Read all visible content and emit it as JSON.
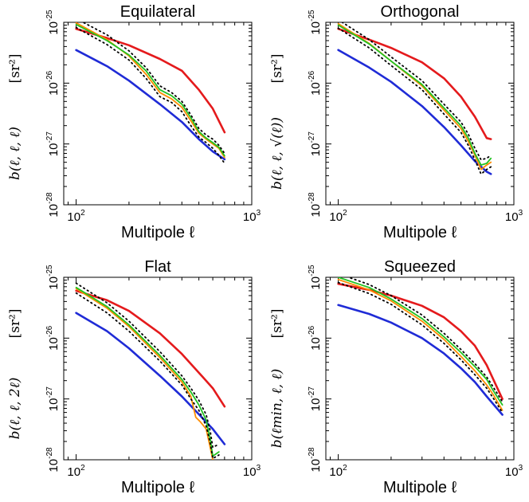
{
  "chart_data": [
    {
      "type": "line",
      "title": "Equilateral",
      "xlabel": "Multipole ℓ",
      "ylabel": "b(ℓ, ℓ, ℓ)",
      "yunit": "[sr²]",
      "xscale": "log",
      "yscale": "log",
      "xlim": [
        85,
        1000
      ],
      "ylim": [
        1e-28,
        1e-25
      ],
      "xticks": [
        {
          "base": "10",
          "exp": "2",
          "value": 100
        },
        {
          "base": "10",
          "exp": "3",
          "value": 1000
        }
      ],
      "yticks": [
        {
          "base": "10",
          "exp": "-28",
          "value": 1e-28
        },
        {
          "base": "10",
          "exp": "-27",
          "value": 1e-27
        },
        {
          "base": "10",
          "exp": "-26",
          "value": 1e-26
        },
        {
          "base": "10",
          "exp": "-25",
          "value": 1e-25
        }
      ],
      "series": [
        {
          "color": "#e41a1c",
          "style": "solid",
          "x": [
            100,
            150,
            200,
            300,
            400,
            500,
            600,
            700
          ],
          "y": [
            7.8e-26,
            5.5e-26,
            4.2e-26,
            2.5e-26,
            1.6e-26,
            7.8e-27,
            3.8e-27,
            1.55e-27
          ]
        },
        {
          "color": "#1f2bd6",
          "style": "solid",
          "x": [
            100,
            150,
            200,
            300,
            400,
            500,
            600,
            700
          ],
          "y": [
            3.5e-26,
            1.9e-26,
            1.1e-26,
            4.5e-27,
            2.3e-27,
            1.2e-27,
            7.5e-28,
            5.6e-28
          ]
        },
        {
          "color": "#ff8c00",
          "style": "solid",
          "x": [
            100,
            150,
            200,
            250,
            300,
            350,
            400,
            450,
            500,
            550,
            600,
            650,
            700
          ],
          "y": [
            9.8e-26,
            5.2e-26,
            2.8e-26,
            1.4e-26,
            7e-27,
            5.5e-27,
            4e-27,
            2.4e-27,
            1.5e-27,
            1.2e-27,
            1e-27,
            8.5e-28,
            6e-28
          ]
        },
        {
          "color": "#22c322",
          "style": "solid",
          "x": [
            100,
            150,
            200,
            250,
            300,
            350,
            400,
            450,
            500,
            550,
            600,
            650,
            700
          ],
          "y": [
            9.2e-26,
            5e-26,
            2.9e-26,
            1.6e-26,
            7.8e-27,
            6.2e-27,
            4.5e-27,
            2.7e-27,
            1.6e-27,
            1.25e-27,
            1.05e-27,
            8.8e-28,
            6.4e-28
          ]
        },
        {
          "color": "#000000",
          "style": "dotted",
          "x": [
            100,
            150,
            200,
            250,
            300,
            350,
            400,
            450,
            500,
            550,
            600,
            650,
            700
          ],
          "y": [
            1.15e-25,
            6.2e-26,
            3.4e-26,
            1.8e-26,
            9e-27,
            7e-27,
            5e-27,
            3e-27,
            1.8e-27,
            1.4e-27,
            1.2e-27,
            9.5e-28,
            7e-28
          ]
        },
        {
          "color": "#000000",
          "style": "dotted",
          "x": [
            100,
            150,
            200,
            250,
            300,
            350,
            400,
            450,
            500,
            550,
            600,
            650,
            700
          ],
          "y": [
            8.2e-26,
            4.3e-26,
            2.4e-26,
            1.2e-26,
            6e-27,
            4.8e-27,
            3.4e-27,
            2e-27,
            1.3e-27,
            1.05e-27,
            8.5e-28,
            6.5e-28,
            4.8e-28
          ]
        }
      ]
    },
    {
      "type": "line",
      "title": "Orthogonal",
      "xlabel": "Multipole ℓ",
      "ylabel": "b(ℓ, ℓ, √(ℓ))",
      "yunit": "[sr²]",
      "xscale": "log",
      "yscale": "log",
      "xlim": [
        85,
        1000
      ],
      "ylim": [
        1e-28,
        1e-25
      ],
      "xticks": [
        {
          "base": "10",
          "exp": "2",
          "value": 100
        },
        {
          "base": "10",
          "exp": "3",
          "value": 1000
        }
      ],
      "yticks": [
        {
          "base": "10",
          "exp": "-28",
          "value": 1e-28
        },
        {
          "base": "10",
          "exp": "-27",
          "value": 1e-27
        },
        {
          "base": "10",
          "exp": "-26",
          "value": 1e-26
        },
        {
          "base": "10",
          "exp": "-25",
          "value": 1e-25
        }
      ],
      "series": [
        {
          "color": "#e41a1c",
          "style": "solid",
          "x": [
            100,
            150,
            200,
            300,
            400,
            500,
            600,
            700,
            740
          ],
          "y": [
            7.8e-26,
            5.2e-26,
            3.8e-26,
            2.2e-26,
            1.2e-26,
            6e-27,
            2.8e-27,
            1.25e-27,
            1.2e-27
          ]
        },
        {
          "color": "#1f2bd6",
          "style": "solid",
          "x": [
            100,
            150,
            200,
            300,
            400,
            500,
            600,
            700,
            740
          ],
          "y": [
            3.5e-26,
            1.8e-26,
            1.05e-26,
            4.2e-27,
            1.9e-27,
            9.5e-28,
            5.2e-28,
            3.5e-28,
            3.2e-28
          ]
        },
        {
          "color": "#ff8c00",
          "style": "solid",
          "x": [
            100,
            150,
            200,
            300,
            400,
            500,
            550,
            600,
            650,
            700,
            740
          ],
          "y": [
            9.5e-26,
            4.5e-26,
            2.3e-26,
            9e-27,
            3.6e-27,
            1.8e-27,
            1.1e-27,
            6.5e-28,
            3.8e-28,
            4.5e-28,
            5e-28
          ]
        },
        {
          "color": "#22c322",
          "style": "solid",
          "x": [
            100,
            150,
            200,
            300,
            400,
            500,
            550,
            600,
            650,
            700,
            740
          ],
          "y": [
            9e-26,
            4.4e-26,
            2.3e-26,
            9.5e-27,
            3.9e-27,
            2e-27,
            1.25e-27,
            7e-28,
            4.5e-28,
            4.8e-28,
            5.8e-28
          ]
        },
        {
          "color": "#000000",
          "style": "dotted",
          "x": [
            100,
            150,
            200,
            300,
            400,
            500,
            550,
            600,
            650,
            700,
            740
          ],
          "y": [
            1.1e-25,
            5.2e-26,
            2.7e-26,
            1.1e-26,
            4.5e-27,
            2.3e-27,
            1.45e-27,
            8.5e-28,
            5.5e-28,
            5.8e-28,
            6.5e-28
          ]
        },
        {
          "color": "#000000",
          "style": "dotted",
          "x": [
            100,
            150,
            200,
            300,
            400,
            500,
            550,
            600,
            650,
            700,
            740
          ],
          "y": [
            8e-26,
            3.8e-26,
            1.95e-26,
            7.8e-27,
            3.1e-27,
            1.55e-27,
            9.5e-28,
            5.5e-28,
            3.2e-28,
            3.8e-28,
            4.2e-28
          ]
        }
      ]
    },
    {
      "type": "line",
      "title": "Flat",
      "xlabel": "Multipole ℓ",
      "ylabel": "b(ℓ, ℓ, 2ℓ)",
      "yunit": "[sr²]",
      "xscale": "log",
      "yscale": "log",
      "xlim": [
        85,
        1000
      ],
      "ylim": [
        1e-28,
        1e-25
      ],
      "xticks": [
        {
          "base": "10",
          "exp": "2",
          "value": 100
        },
        {
          "base": "10",
          "exp": "3",
          "value": 1000
        }
      ],
      "yticks": [
        {
          "base": "10",
          "exp": "-28",
          "value": 1e-28
        },
        {
          "base": "10",
          "exp": "-27",
          "value": 1e-27
        },
        {
          "base": "10",
          "exp": "-26",
          "value": 1e-26
        },
        {
          "base": "10",
          "exp": "-25",
          "value": 1e-25
        }
      ],
      "series": [
        {
          "color": "#e41a1c",
          "style": "solid",
          "x": [
            100,
            150,
            200,
            300,
            400,
            500,
            600,
            700
          ],
          "y": [
            6e-26,
            4.2e-26,
            2.8e-26,
            1.2e-26,
            5.5e-27,
            2.7e-27,
            1.5e-27,
            7.5e-28
          ]
        },
        {
          "color": "#1f2bd6",
          "style": "solid",
          "x": [
            100,
            150,
            200,
            300,
            400,
            500,
            600,
            700
          ],
          "y": [
            2.6e-26,
            1.3e-26,
            6.8e-27,
            2.4e-27,
            1.1e-27,
            5.6e-28,
            3.2e-28,
            1.8e-28
          ]
        },
        {
          "color": "#ff8c00",
          "style": "solid",
          "x": [
            100,
            150,
            200,
            300,
            400,
            450,
            480,
            510,
            550,
            580,
            600
          ],
          "y": [
            6.5e-26,
            3.1e-26,
            1.55e-26,
            4.8e-27,
            1.9e-27,
            1.1e-27,
            5e-28,
            4.2e-28,
            3.2e-28,
            1.6e-28,
            1e-28
          ]
        },
        {
          "color": "#22c322",
          "style": "solid",
          "x": [
            100,
            150,
            200,
            300,
            400,
            450,
            500,
            550,
            580,
            600,
            650
          ],
          "y": [
            6.8e-26,
            3.3e-26,
            1.65e-26,
            5.2e-27,
            2.1e-27,
            1.3e-27,
            8e-28,
            4.5e-28,
            2.2e-28,
            1.15e-28,
            1.35e-28
          ]
        },
        {
          "color": "#000000",
          "style": "dotted",
          "x": [
            100,
            150,
            200,
            300,
            400,
            450,
            500,
            550,
            580,
            600,
            650
          ],
          "y": [
            8e-26,
            3.8e-26,
            1.9e-26,
            6e-27,
            2.4e-27,
            1.5e-27,
            9.5e-28,
            5.5e-28,
            3e-28,
            1.6e-28,
            1.8e-28
          ]
        },
        {
          "color": "#000000",
          "style": "dotted",
          "x": [
            100,
            150,
            200,
            300,
            400,
            450,
            500,
            550,
            580,
            600,
            650
          ],
          "y": [
            5.5e-26,
            2.6e-26,
            1.3e-26,
            4.2e-27,
            1.7e-27,
            1e-27,
            6.5e-28,
            3.6e-28,
            1.9e-28,
            1.05e-28,
            1.2e-28
          ]
        }
      ]
    },
    {
      "type": "line",
      "title": "Squeezed",
      "xlabel": "Multipole ℓ",
      "ylabel": "b(ℓmin, ℓ, ℓ)",
      "yunit": "[sr²]",
      "xscale": "log",
      "yscale": "log",
      "xlim": [
        85,
        1000
      ],
      "ylim": [
        1e-28,
        1e-25
      ],
      "xticks": [
        {
          "base": "10",
          "exp": "2",
          "value": 100
        },
        {
          "base": "10",
          "exp": "3",
          "value": 1000
        }
      ],
      "yticks": [
        {
          "base": "10",
          "exp": "-28",
          "value": 1e-28
        },
        {
          "base": "10",
          "exp": "-27",
          "value": 1e-27
        },
        {
          "base": "10",
          "exp": "-26",
          "value": 1e-26
        },
        {
          "base": "10",
          "exp": "-25",
          "value": 1e-25
        }
      ],
      "series": [
        {
          "color": "#e41a1c",
          "style": "solid",
          "x": [
            100,
            150,
            200,
            300,
            400,
            500,
            600,
            700,
            860
          ],
          "y": [
            7.8e-26,
            6.2e-26,
            5e-26,
            3.4e-26,
            2.2e-26,
            1.3e-26,
            7.5e-27,
            3.6e-27,
            1e-27
          ]
        },
        {
          "color": "#1f2bd6",
          "style": "solid",
          "x": [
            100,
            150,
            200,
            300,
            400,
            500,
            600,
            700,
            860
          ],
          "y": [
            3.5e-26,
            2.5e-26,
            1.8e-26,
            1e-26,
            5.6e-27,
            3.2e-27,
            1.9e-27,
            1.1e-27,
            5.5e-28
          ]
        },
        {
          "color": "#ff8c00",
          "style": "solid",
          "x": [
            100,
            150,
            200,
            300,
            400,
            500,
            600,
            700,
            760,
            860
          ],
          "y": [
            9.2e-26,
            6.2e-26,
            4.1e-26,
            1.9e-26,
            9.5e-27,
            5e-27,
            2.9e-27,
            1.7e-27,
            1.2e-27,
            6.5e-28
          ]
        },
        {
          "color": "#22c322",
          "style": "solid",
          "x": [
            100,
            150,
            200,
            300,
            400,
            500,
            600,
            700,
            760,
            860
          ],
          "y": [
            1e-25,
            6.8e-26,
            4.4e-26,
            2.1e-26,
            1.05e-26,
            5.8e-27,
            3.4e-27,
            2.1e-27,
            1.4e-27,
            8e-28
          ]
        },
        {
          "color": "#000000",
          "style": "dotted",
          "x": [
            100,
            150,
            200,
            300,
            400,
            500,
            600,
            700,
            760,
            860
          ],
          "y": [
            1.15e-25,
            7.6e-26,
            5e-26,
            2.4e-26,
            1.2e-26,
            6.5e-27,
            3.8e-27,
            2.3e-27,
            1.6e-27,
            9e-28
          ]
        },
        {
          "color": "#000000",
          "style": "dotted",
          "x": [
            100,
            150,
            200,
            300,
            400,
            500,
            600,
            700,
            760,
            860
          ],
          "y": [
            8.2e-26,
            5.4e-26,
            3.6e-26,
            1.65e-26,
            8.2e-27,
            4.4e-27,
            2.5e-27,
            1.5e-27,
            1.05e-27,
            6e-28
          ]
        }
      ]
    }
  ]
}
